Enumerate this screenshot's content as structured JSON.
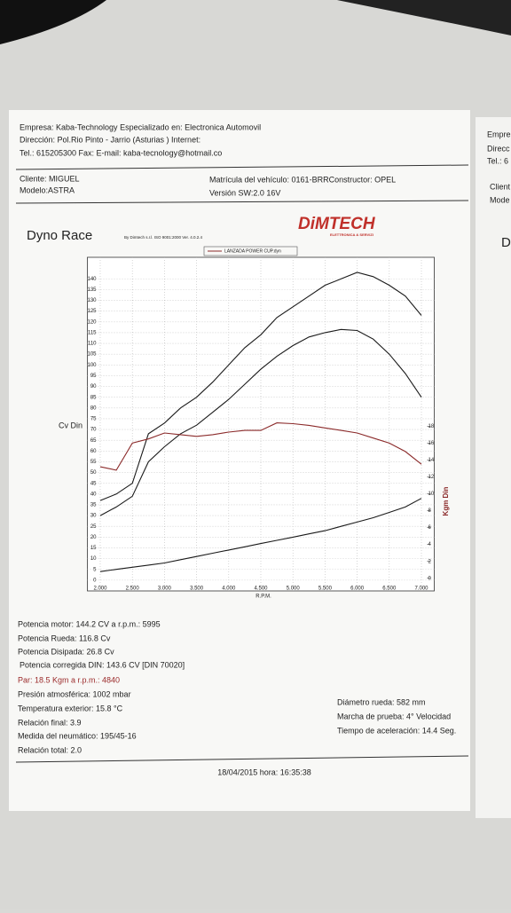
{
  "header": {
    "company": "Empresa: Kaba-Technology  Especializado en: Electronica Automovil",
    "address": "Dirección: Pol.Rio Pinto - Jarrio (Asturias ) Internet:",
    "contact": "Tel.: 615205300 Fax:  E-mail: kaba-tecnology@hotmail.co"
  },
  "client": {
    "client": "Cliente:  MIGUEL",
    "model": "Modelo:ASTRA",
    "plate": "Matrícula del vehículo: 0161-BRRConstructor: OPEL",
    "version": "Versión SW:2.0 16V"
  },
  "chart": {
    "type": "line",
    "title": "Dyno Race",
    "software": "By Dimtech s.r.l.  ISO 9001:2000  Ver. 4.0.2.4",
    "logo": "DiMTECH",
    "logo_sub": "ELETTRONICA & SERVIZI",
    "legend": "LANZADA POWER CUP.dyn",
    "y_label": "Cv Din",
    "y2_label": "Kgm Din",
    "x_label": "R.P.M.",
    "x": [
      2000,
      2250,
      2500,
      2750,
      3000,
      3250,
      3500,
      3750,
      4000,
      4250,
      4500,
      4750,
      5000,
      5250,
      5500,
      5750,
      6000,
      6250,
      6500,
      6750,
      7000
    ],
    "xlim": [
      1800,
      7200
    ],
    "xticks": [
      {
        "value": 2000,
        "label": "2.000"
      },
      {
        "value": 2500,
        "label": "2.500"
      },
      {
        "value": 3000,
        "label": "3.000"
      },
      {
        "value": 3500,
        "label": "3.500"
      },
      {
        "value": 4000,
        "label": "4.000"
      },
      {
        "value": 4500,
        "label": "4.500"
      },
      {
        "value": 5000,
        "label": "5.000"
      },
      {
        "value": 5500,
        "label": "5.500"
      },
      {
        "value": 6000,
        "label": "6.000"
      },
      {
        "value": 6500,
        "label": "6.500"
      },
      {
        "value": 7000,
        "label": "7.000"
      }
    ],
    "ylim": [
      -5,
      150
    ],
    "yticks": [
      0,
      5,
      10,
      15,
      20,
      25,
      30,
      35,
      40,
      45,
      50,
      55,
      60,
      65,
      70,
      75,
      80,
      85,
      90,
      95,
      100,
      105,
      110,
      115,
      120,
      125,
      130,
      135,
      140
    ],
    "y2lim": [
      -1.5,
      38
    ],
    "y2ticks": [
      0,
      2,
      4,
      6,
      8,
      10,
      12,
      14,
      16,
      18
    ],
    "grid": true,
    "series": [
      {
        "color": "#1a1a1a",
        "values": [
          37,
          40,
          45,
          68,
          73,
          80,
          85,
          92,
          100,
          108,
          114,
          122,
          127,
          132,
          137,
          140,
          143,
          141,
          137,
          132,
          123
        ]
      },
      {
        "color": "#1a1a1a",
        "values": [
          30,
          34,
          39,
          55,
          62,
          68,
          72,
          78,
          84,
          91,
          98,
          104,
          109,
          113,
          115,
          116.5,
          116,
          112,
          105,
          96,
          85
        ]
      },
      {
        "color": "#1a1a1a",
        "values": [
          4,
          5,
          6,
          7,
          8,
          9.5,
          11,
          12.5,
          14,
          15.5,
          17,
          18.5,
          20,
          21.5,
          23,
          25,
          27,
          29,
          31.5,
          34,
          38
        ]
      },
      {
        "color": "#8b2a2a",
        "axis": "y2",
        "values": [
          13.2,
          12.8,
          16,
          16.5,
          17.2,
          17,
          16.8,
          17,
          17.3,
          17.5,
          17.5,
          18.4,
          18.3,
          18.1,
          17.8,
          17.5,
          17.2,
          16.6,
          16,
          15,
          13.5
        ]
      }
    ]
  },
  "results": {
    "power": "Potencia motor:  144.2 CV a r.p.m.: 5995",
    "wheel": "Potencia Rueda:  116.8 Cv",
    "loss": "Potencia Disipada:   26.8 Cv",
    "din": "Potencia corregida DIN:  143.6 CV  [DIN 70020]",
    "torque": "Par:  18.5  Kgm a r.p.m.: 4840",
    "pressure": "Presión atmosférica:   1002 mbar",
    "temperature": "Temperatura exterior:   15.8 °C",
    "final_ratio": "Relación final: 3.9",
    "tyre": "Medida del neumático:   195/45-16",
    "total_ratio": "Relación total: 2.0",
    "wheel_diameter": "Diámetro rueda:  582 mm",
    "gear": "Marcha de prueba:  4° Velocidad",
    "accel_time": "Tiempo de aceleración: 14.4 Seg."
  },
  "footer": {
    "datetime": "18/04/2015  hora:  16:35:38"
  },
  "next_page": {
    "l1": "Empre",
    "l2": "Direcc",
    "l3": "Tel.: 6",
    "l4": "Client",
    "l5": "Mode",
    "l6": "D"
  }
}
